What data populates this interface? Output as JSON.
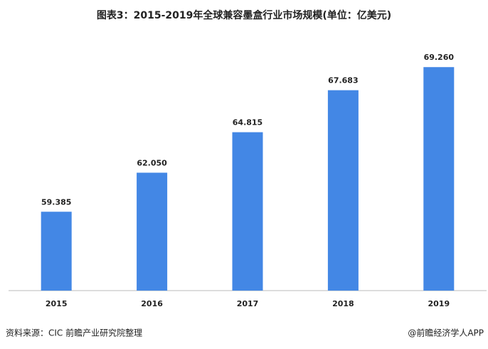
{
  "chart_data": {
    "type": "bar",
    "title": "图表3：2015-2019年全球兼容墨盒行业市场规模(单位：亿美元)",
    "categories": [
      "2015",
      "2016",
      "2017",
      "2018",
      "2019"
    ],
    "values": [
      59.385,
      62.05,
      64.815,
      67.683,
      69.26
    ],
    "value_labels": [
      "59.385",
      "62.050",
      "64.815",
      "67.683",
      "69.260"
    ],
    "color": "#4387e5",
    "ylim": [
      54,
      70
    ]
  },
  "footer": {
    "source": "资料来源：CIC 前瞻产业研究院整理",
    "brand": "@前瞻经济学人APP"
  }
}
